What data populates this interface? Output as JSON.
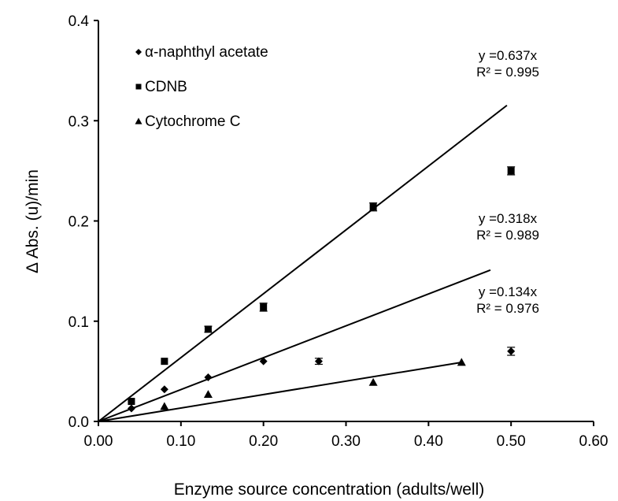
{
  "chart_data": {
    "type": "scatter",
    "title": "",
    "xlabel": "Enzyme source concentration (adults/well)",
    "ylabel": "Δ Abs. (u)/min",
    "xlim": [
      0,
      0.6
    ],
    "ylim": [
      0,
      0.4
    ],
    "x_ticks": [
      "0.00",
      "0.10",
      "0.20",
      "0.30",
      "0.40",
      "0.50",
      "0.60"
    ],
    "y_ticks": [
      "0.0",
      "0.1",
      "0.2",
      "0.3",
      "0.4"
    ],
    "grid": false,
    "legend_position": "top-left",
    "series": [
      {
        "name": "α-naphthyl acetate",
        "marker": "diamond",
        "points": [
          {
            "x": 0.04,
            "y": 0.013
          },
          {
            "x": 0.08,
            "y": 0.032
          },
          {
            "x": 0.133,
            "y": 0.044
          },
          {
            "x": 0.2,
            "y": 0.06
          },
          {
            "x": 0.267,
            "y": 0.06,
            "err": 0.003
          },
          {
            "x": 0.5,
            "y": 0.07,
            "err": 0.004
          }
        ],
        "fit": {
          "slope": 0.318,
          "x_end": 0.475,
          "equation": "y =0.318x",
          "r2": "R² = 0.989"
        }
      },
      {
        "name": "CDNB",
        "marker": "square",
        "points": [
          {
            "x": 0.04,
            "y": 0.02
          },
          {
            "x": 0.08,
            "y": 0.06
          },
          {
            "x": 0.133,
            "y": 0.092,
            "err": 0.003
          },
          {
            "x": 0.2,
            "y": 0.114,
            "err": 0.004
          },
          {
            "x": 0.333,
            "y": 0.214,
            "err": 0.004
          },
          {
            "x": 0.5,
            "y": 0.25,
            "err": 0.004
          }
        ],
        "fit": {
          "slope": 0.637,
          "x_end": 0.495,
          "equation": "y =0.637x",
          "r2": "R² = 0.995"
        }
      },
      {
        "name": "Cytochrome C",
        "marker": "triangle",
        "points": [
          {
            "x": 0.08,
            "y": 0.015
          },
          {
            "x": 0.133,
            "y": 0.027
          },
          {
            "x": 0.333,
            "y": 0.039
          },
          {
            "x": 0.44,
            "y": 0.059
          }
        ],
        "fit": {
          "slope": 0.134,
          "x_end": 0.44,
          "equation": "y =0.134x",
          "r2": "R² = 0.976"
        }
      }
    ],
    "legend": [
      "α-naphthyl acetate",
      "CDNB",
      "Cytochrome C"
    ]
  }
}
